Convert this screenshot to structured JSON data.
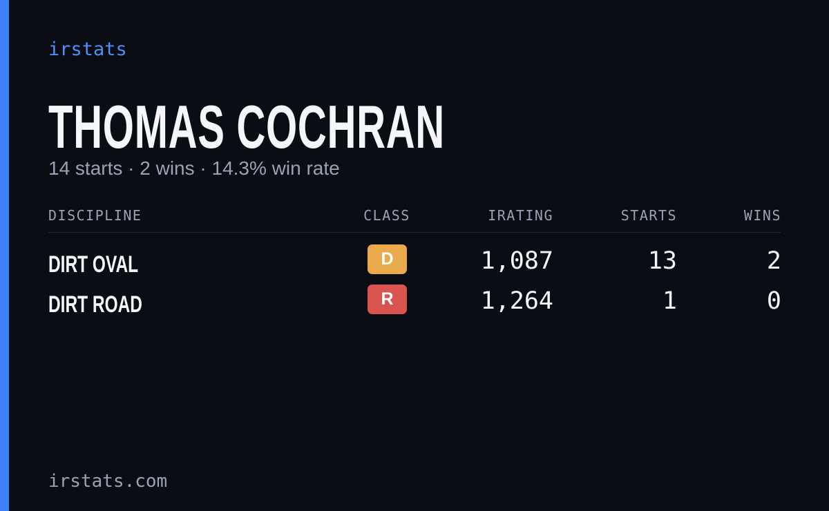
{
  "brand": "irstats",
  "name": "THOMAS COCHRAN",
  "summary": "14 starts · 2 wins · 14.3% win rate",
  "table": {
    "headers": [
      "DISCIPLINE",
      "CLASS",
      "IRATING",
      "STARTS",
      "WINS"
    ],
    "rows": [
      {
        "discipline": "DIRT OVAL",
        "class": "D",
        "class_color": "#eaa94b",
        "irating": "1,087",
        "starts": "13",
        "wins": "2"
      },
      {
        "discipline": "DIRT ROAD",
        "class": "R",
        "class_color": "#d9534f",
        "irating": "1,264",
        "starts": "1",
        "wins": "0"
      }
    ]
  },
  "footer": "irstats.com"
}
